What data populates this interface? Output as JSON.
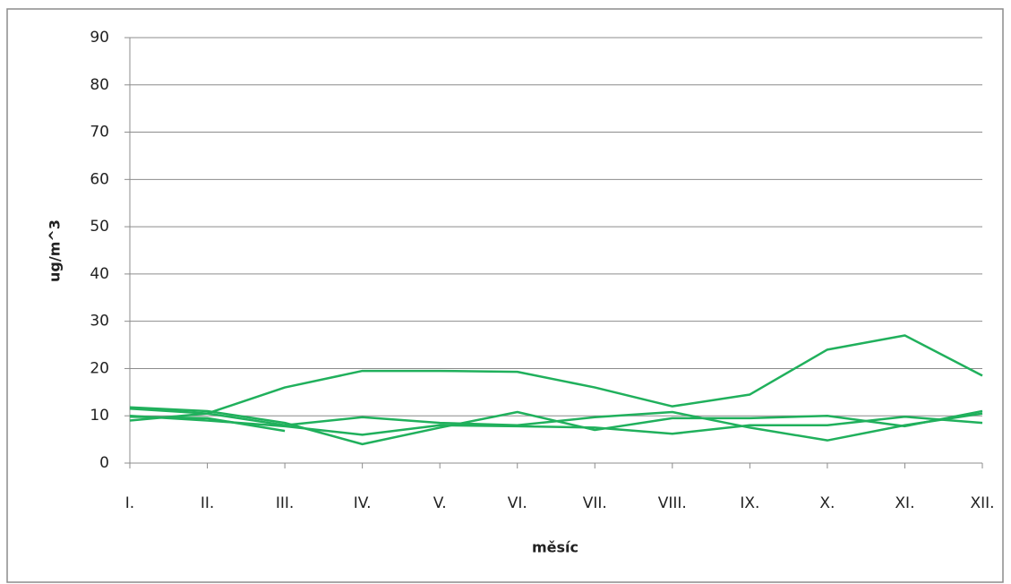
{
  "chart_data": {
    "type": "line",
    "x_label": "měsíc",
    "y_label": "ug/m^3",
    "categories": [
      "I.",
      "II.",
      "III.",
      "IV.",
      "V.",
      "VI.",
      "VII.",
      "VIII.",
      "IX.",
      "X.",
      "XI.",
      "XII."
    ],
    "series": [
      {
        "color": "#20b05c",
        "values": [
          9,
          10.5,
          16,
          19.5,
          19.5,
          19.3,
          16,
          12,
          14.5,
          24,
          27,
          18.5
        ]
      },
      {
        "color": "#20b05c",
        "values": [
          11.8,
          11,
          8.5,
          4,
          7.5,
          10.8,
          7,
          9.5,
          9.5,
          10,
          7.8,
          11
        ]
      },
      {
        "color": "#20b05c",
        "values": [
          11.5,
          10.5,
          8,
          9.7,
          8.5,
          8,
          9.7,
          10.8,
          7.5,
          4.8,
          8,
          10.5
        ]
      },
      {
        "color": "#20b05c",
        "values": [
          10,
          9,
          7.8,
          6,
          8,
          7.8,
          7.5,
          6.2,
          8,
          8,
          9.8,
          8.5
        ]
      },
      {
        "color": "#20b05c",
        "values": [
          9.8,
          9.5,
          6.8,
          null,
          null,
          null,
          null,
          null,
          null,
          null,
          null,
          null
        ]
      }
    ],
    "ylim": [
      0,
      90
    ],
    "yticks": [
      0,
      10,
      20,
      30,
      40,
      50,
      60,
      70,
      80,
      90
    ],
    "grid": true
  }
}
